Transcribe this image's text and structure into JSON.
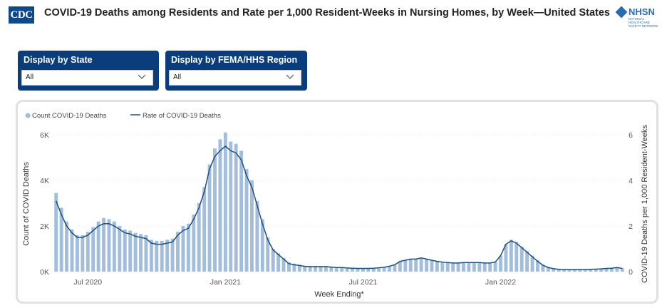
{
  "header": {
    "cdc_logo": "CDC",
    "title": "COVID-19 Deaths among Residents and Rate per 1,000 Resident-Weeks in Nursing Homes, by Week—United States",
    "nhsn_logo": "NHSN",
    "nhsn_subtitle": "NATIONAL HEALTHCARE SAFETY NETWORK"
  },
  "filters": [
    {
      "label": "Display by State",
      "value": "All"
    },
    {
      "label": "Display by FEMA/HHS Region",
      "value": "All"
    }
  ],
  "colors": {
    "brand_blue": "#0b3c7c",
    "bar": "#a3bddd",
    "line": "#1d4f7e"
  },
  "chart_data": {
    "type": "bar",
    "title": "",
    "xlabel": "Week Ending*",
    "ylabel": "Count of COVID Deaths",
    "y2label": "COVID-19 Deaths per 1,000 Resident-Weeks",
    "ylim": [
      0,
      6500
    ],
    "y2lim": [
      0,
      6.5
    ],
    "yticks": [
      "0K",
      "2K",
      "4K",
      "6K"
    ],
    "y2ticks": [
      "0",
      "2",
      "4",
      "6"
    ],
    "xticks": [
      {
        "label": "Jul 2020",
        "index": 6
      },
      {
        "label": "Jan 2021",
        "index": 32
      },
      {
        "label": "Jul 2021",
        "index": 58
      },
      {
        "label": "Jan 2022",
        "index": 84
      }
    ],
    "grid": true,
    "legend": {
      "placement": "top-left"
    },
    "series": [
      {
        "name": "Count COVID-19 Deaths",
        "type": "bar",
        "axis": "left",
        "values": [
          3450,
          2800,
          2200,
          1850,
          1600,
          1600,
          1750,
          1950,
          2200,
          2350,
          2300,
          2200,
          2000,
          1850,
          1800,
          1700,
          1650,
          1600,
          1400,
          1350,
          1350,
          1400,
          1450,
          1750,
          2000,
          2100,
          2500,
          3000,
          3700,
          4700,
          5400,
          5800,
          6100,
          5700,
          5600,
          5300,
          4500,
          4000,
          3100,
          2300,
          1500,
          1000,
          800,
          600,
          400,
          350,
          300,
          250,
          250,
          250,
          250,
          250,
          220,
          200,
          200,
          180,
          170,
          150,
          150,
          150,
          160,
          180,
          200,
          250,
          300,
          450,
          500,
          550,
          550,
          600,
          550,
          500,
          450,
          420,
          400,
          380,
          380,
          400,
          400,
          400,
          400,
          380,
          380,
          420,
          700,
          1200,
          1400,
          1300,
          1100,
          900,
          700,
          500,
          300,
          200,
          150,
          120,
          100,
          100,
          100,
          100,
          100,
          100,
          120,
          130,
          150,
          170,
          200,
          150
        ]
      },
      {
        "name": "Rate of COVID-19 Deaths",
        "type": "line",
        "axis": "right",
        "values": [
          3.1,
          2.5,
          2.0,
          1.7,
          1.5,
          1.5,
          1.6,
          1.8,
          2.0,
          2.1,
          2.1,
          2.0,
          1.85,
          1.7,
          1.65,
          1.55,
          1.5,
          1.45,
          1.25,
          1.2,
          1.2,
          1.25,
          1.3,
          1.6,
          1.8,
          1.9,
          2.3,
          2.8,
          3.5,
          4.5,
          5.05,
          5.3,
          5.5,
          5.3,
          5.2,
          4.9,
          4.2,
          3.7,
          2.9,
          2.1,
          1.4,
          0.95,
          0.75,
          0.55,
          0.35,
          0.3,
          0.27,
          0.23,
          0.22,
          0.22,
          0.22,
          0.22,
          0.2,
          0.18,
          0.18,
          0.16,
          0.15,
          0.14,
          0.14,
          0.14,
          0.15,
          0.17,
          0.19,
          0.24,
          0.3,
          0.45,
          0.5,
          0.55,
          0.55,
          0.6,
          0.55,
          0.5,
          0.45,
          0.42,
          0.4,
          0.38,
          0.38,
          0.4,
          0.4,
          0.4,
          0.4,
          0.38,
          0.38,
          0.42,
          0.7,
          1.2,
          1.35,
          1.25,
          1.05,
          0.85,
          0.65,
          0.45,
          0.28,
          0.18,
          0.13,
          0.1,
          0.09,
          0.09,
          0.09,
          0.09,
          0.09,
          0.1,
          0.11,
          0.12,
          0.14,
          0.15,
          0.18,
          0.14
        ]
      }
    ]
  }
}
